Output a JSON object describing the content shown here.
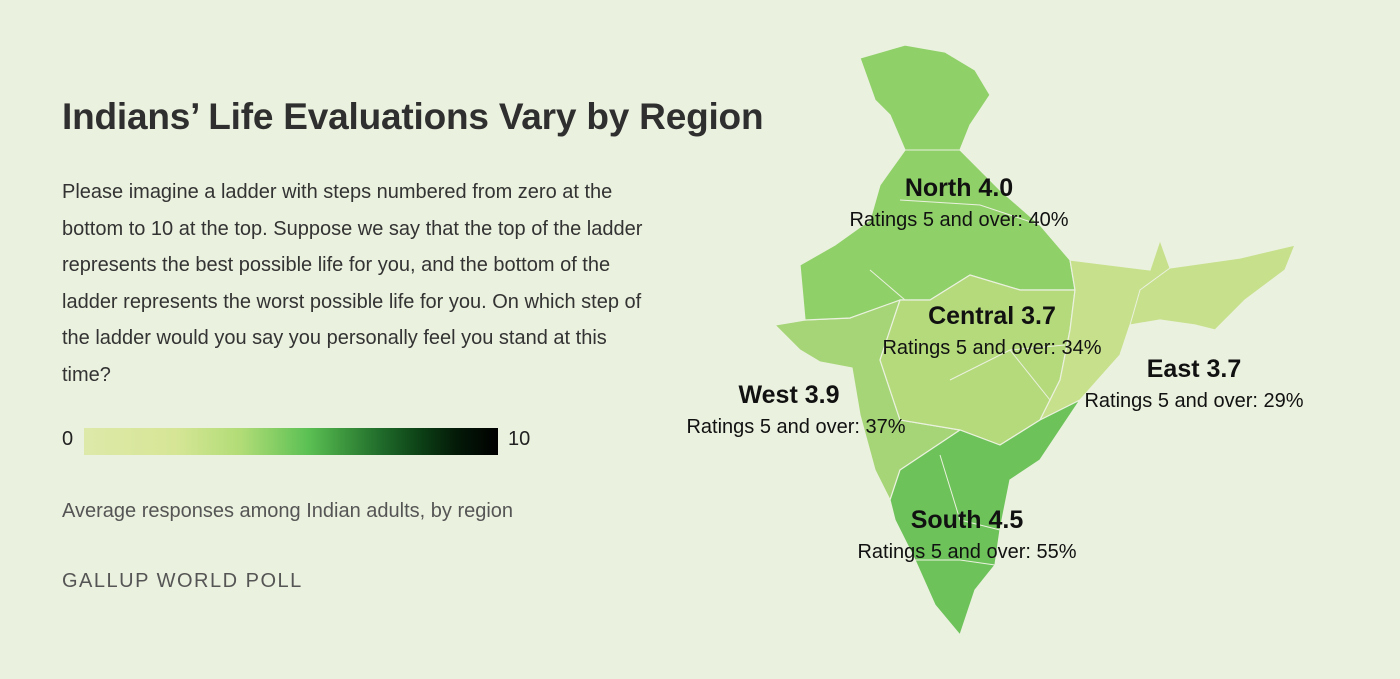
{
  "title": "Indians’ Life Evaluations Vary by Region",
  "question": "Please imagine a ladder with steps numbered from zero at the bottom to 10 at the top. Suppose we say that the top of the ladder represents the best possible life for you, and the bottom of the ladder represents the worst possible life for you. On which step of the ladder would you say you personally feel you stand at this time?",
  "scale": {
    "min_label": "0",
    "max_label": "10"
  },
  "subtitle": "Average responses among Indian adults, by region",
  "source": "GALLUP WORLD POLL",
  "regions": {
    "north": {
      "label": "North 4.0",
      "rate": "Ratings 5 and over: 40%",
      "score": 4.0,
      "color": "#8fd069"
    },
    "central": {
      "label": "Central 3.7",
      "rate": "Ratings 5 and over: 34%",
      "score": 3.7,
      "color": "#b5da7c"
    },
    "east": {
      "label": "East 3.7",
      "rate": "Ratings 5 and over: 29%",
      "score": 3.7,
      "color": "#c7e08c"
    },
    "west": {
      "label": "West 3.9",
      "rate": "Ratings 5 and over: 37%",
      "score": 3.9,
      "color": "#a5d576"
    },
    "south": {
      "label": "South 4.5",
      "rate": "Ratings 5 and over: 55%",
      "score": 4.5,
      "color": "#6dc25a"
    }
  }
}
